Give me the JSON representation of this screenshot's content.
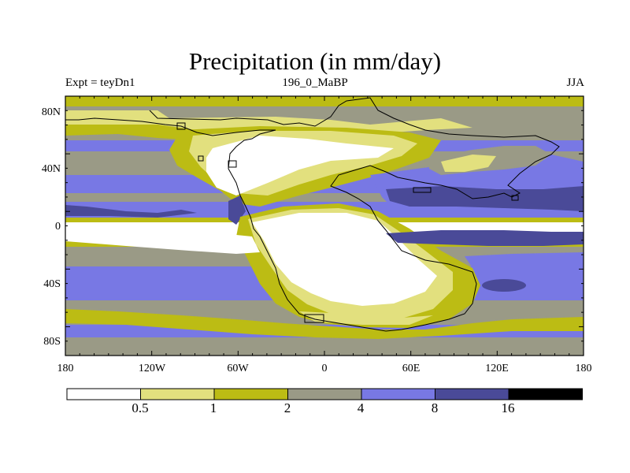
{
  "header": {
    "title": "Precipitation (in mm/day)",
    "left": "Expt = teyDn1",
    "center": "196_0_MaBP",
    "right": "JJA"
  },
  "axes": {
    "lat_labels": [
      "80N",
      "40N",
      "0",
      "40S",
      "80S"
    ],
    "lon_labels": [
      "180",
      "120W",
      "60W",
      "0",
      "60E",
      "120E",
      "180"
    ]
  },
  "colorbar": {
    "boundaries": [
      "0.5",
      "1",
      "2",
      "4",
      "8",
      "16"
    ],
    "colors": [
      "#ffffff",
      "#e2e07e",
      "#bcbc14",
      "#9a9a86",
      "#7878e4",
      "#4a4a98",
      "#000000"
    ]
  },
  "field_colors": {
    "white": "#ffffff",
    "pale_yellow": "#e2e07e",
    "olive": "#bcbc14",
    "gray": "#9a9a86",
    "blue": "#7878e4",
    "dark_blue": "#4a4a98"
  }
}
